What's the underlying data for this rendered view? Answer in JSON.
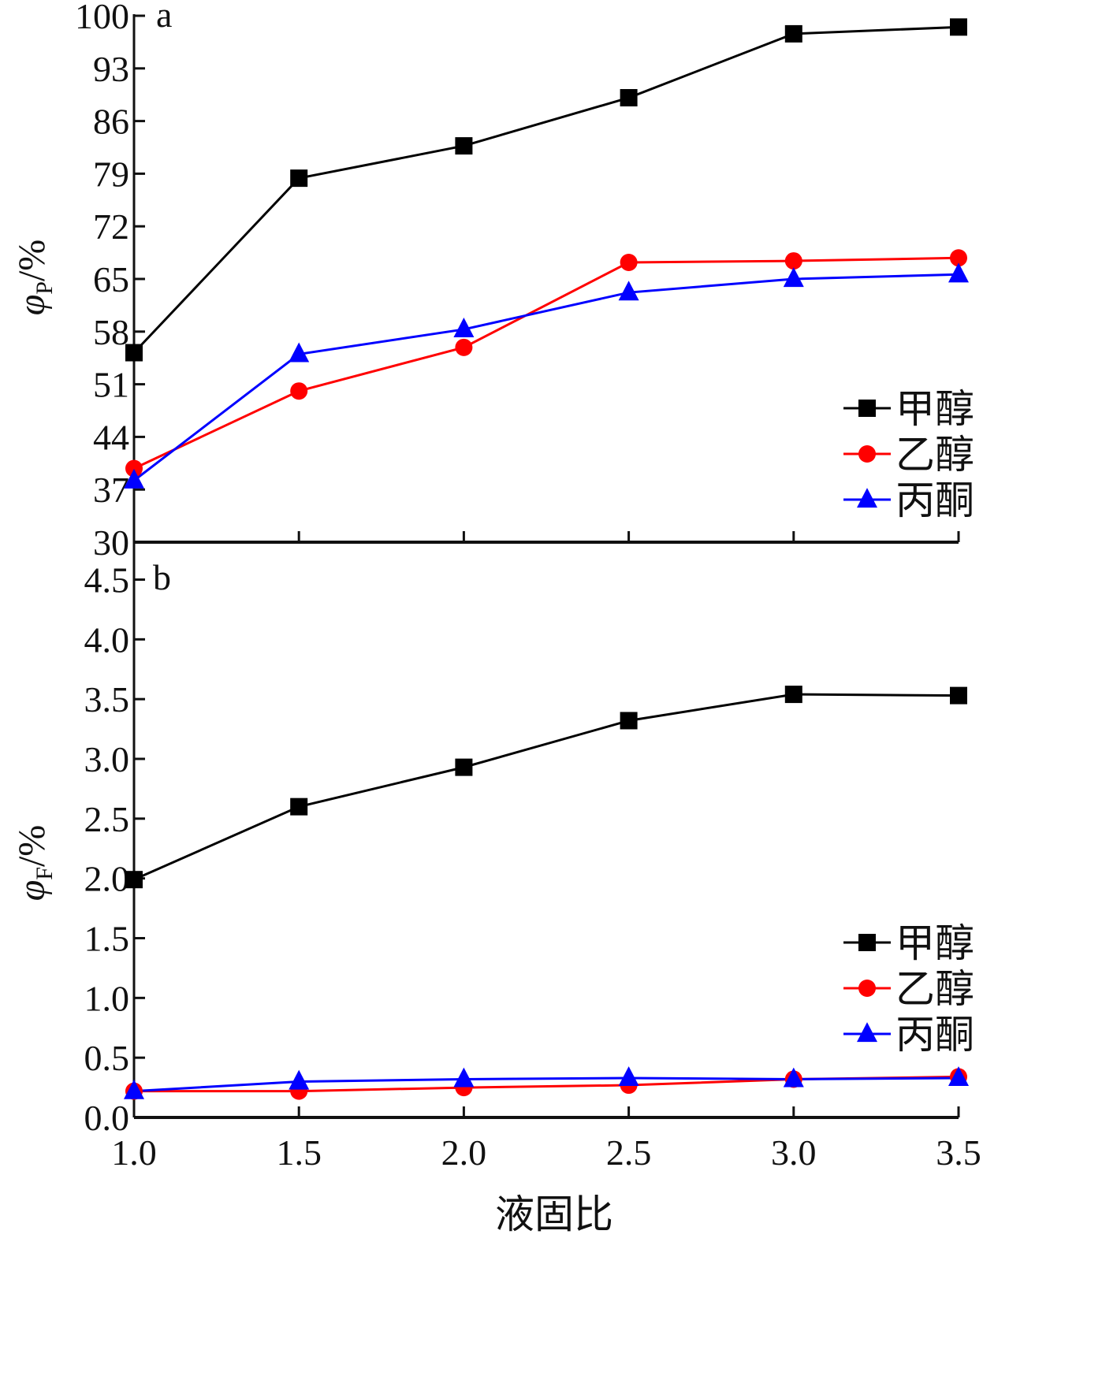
{
  "chart_data": [
    {
      "type": "line",
      "panel": "a",
      "ylabel": "φP/%",
      "ylim": [
        30,
        100
      ],
      "yticks": [
        30,
        37,
        44,
        51,
        58,
        65,
        72,
        79,
        86,
        93,
        100
      ],
      "x": [
        1.0,
        1.5,
        2.0,
        2.5,
        3.0,
        3.5
      ],
      "series": [
        {
          "name": "甲醇",
          "marker": "square",
          "color": "#000000",
          "values": [
            55.2,
            78.4,
            82.7,
            89.1,
            97.6,
            98.5
          ]
        },
        {
          "name": "乙醇",
          "marker": "circle",
          "color": "#ff0000",
          "values": [
            39.8,
            50.1,
            55.9,
            67.2,
            67.4,
            67.8
          ]
        },
        {
          "name": "丙酮",
          "marker": "triangle",
          "color": "#0000ff",
          "values": [
            38.2,
            55.0,
            58.3,
            63.2,
            65.0,
            65.6
          ]
        }
      ],
      "legend": "right"
    },
    {
      "type": "line",
      "panel": "b",
      "ylabel": "φF/%",
      "xlabel": "液固比",
      "ylim": [
        0,
        4.8
      ],
      "yticks": [
        0.0,
        0.5,
        1.0,
        1.5,
        2.0,
        2.5,
        3.0,
        3.5,
        4.0,
        4.5
      ],
      "ytick_labels": [
        "0.0",
        "0.5",
        "1.0",
        "1.5",
        "2.0",
        "2.5",
        "3.0",
        "3.5",
        "4.0",
        "4.5"
      ],
      "x": [
        1.0,
        1.5,
        2.0,
        2.5,
        3.0,
        3.5
      ],
      "xtick_labels": [
        "1.0",
        "1.5",
        "2.0",
        "2.5",
        "3.0",
        "3.5"
      ],
      "series": [
        {
          "name": "甲醇",
          "marker": "square",
          "color": "#000000",
          "values": [
            1.99,
            2.6,
            2.93,
            3.32,
            3.54,
            3.53
          ]
        },
        {
          "name": "乙醇",
          "marker": "circle",
          "color": "#ff0000",
          "values": [
            0.22,
            0.22,
            0.25,
            0.27,
            0.32,
            0.34
          ]
        },
        {
          "name": "丙酮",
          "marker": "triangle",
          "color": "#0000ff",
          "values": [
            0.22,
            0.3,
            0.32,
            0.33,
            0.32,
            0.33
          ]
        }
      ],
      "legend": "bottom-right"
    }
  ]
}
